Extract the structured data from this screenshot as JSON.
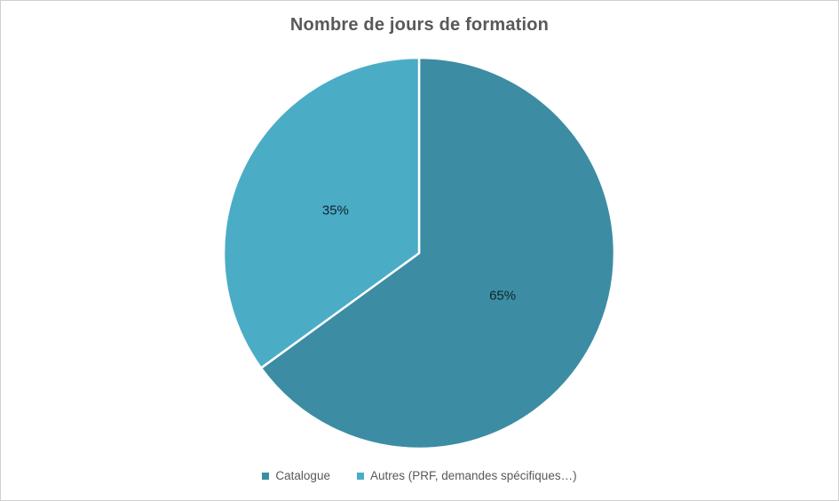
{
  "frame": {
    "background": "#ffffff",
    "border_color": "#cfcfcf"
  },
  "chart_data": {
    "type": "pie",
    "title": "Nombre de jours de formation",
    "categories": [
      "Catalogue",
      "Autres (PRF, demandes spécifiques…)"
    ],
    "values": [
      65,
      35
    ],
    "labels": [
      "65%",
      "35%"
    ],
    "colors": [
      "#3C8DA3",
      "#4BACC6"
    ],
    "slice_border_color": "#ffffff",
    "start_angle_deg": 0,
    "direction": "clockwise",
    "legend_position": "bottom",
    "title_color": "#595959",
    "legend_text_color": "#595959",
    "data_label_color": "#10232b"
  }
}
